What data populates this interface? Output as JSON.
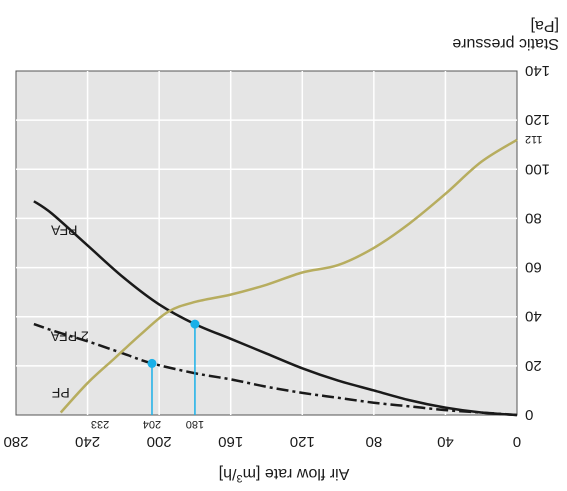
{
  "colors": {
    "plot_background": "#e5e5e5",
    "grid": "#ffffff",
    "PFA": "#1a1a1a",
    "2 PFA": "#1a1a1a",
    "PF": "#b7ad5f",
    "marker": "#1ab0e8"
  },
  "chart_data": {
    "type": "line",
    "orientation_note_visible": false,
    "xlabel": "Air flow rate [m3/h]",
    "xlabel_parts": {
      "main": "Air flow rate [m",
      "sup": "3",
      "end": "/h]"
    },
    "ylabel_line1": "Static pressure",
    "ylabel_line2": "[Pa]",
    "xlim": [
      0,
      280
    ],
    "ylim": [
      0,
      140
    ],
    "x_ticks": [
      "0",
      "40",
      "80",
      "120",
      "160",
      "200",
      "240",
      "280"
    ],
    "y_ticks": [
      "0",
      "20",
      "40",
      "60",
      "80",
      "100",
      "120",
      "140"
    ],
    "grid": true,
    "series": [
      {
        "name": "PFA",
        "key": "PFA",
        "style": "solid",
        "points": [
          [
            0,
            0
          ],
          [
            20,
            1
          ],
          [
            40,
            3
          ],
          [
            60,
            6
          ],
          [
            80,
            10
          ],
          [
            100,
            14
          ],
          [
            120,
            19
          ],
          [
            140,
            25
          ],
          [
            160,
            31
          ],
          [
            180,
            37
          ],
          [
            200,
            45
          ],
          [
            220,
            56
          ],
          [
            240,
            69
          ],
          [
            260,
            82
          ],
          [
            270,
            87
          ]
        ]
      },
      {
        "name": "2 PFA",
        "key": "2 PFA",
        "style": "dashdot",
        "points": [
          [
            0,
            0
          ],
          [
            20,
            1
          ],
          [
            40,
            2
          ],
          [
            60,
            3.5
          ],
          [
            80,
            5
          ],
          [
            100,
            7
          ],
          [
            120,
            9
          ],
          [
            140,
            11.5
          ],
          [
            160,
            14.5
          ],
          [
            180,
            17
          ],
          [
            204,
            21
          ],
          [
            220,
            25
          ],
          [
            240,
            30
          ],
          [
            258,
            34
          ],
          [
            270,
            37
          ]
        ]
      },
      {
        "name": "PF",
        "key": "PF",
        "style": "solid",
        "points": [
          [
            0,
            112
          ],
          [
            20,
            103
          ],
          [
            40,
            90
          ],
          [
            60,
            78
          ],
          [
            80,
            68
          ],
          [
            100,
            61
          ],
          [
            120,
            58
          ],
          [
            140,
            53
          ],
          [
            160,
            49
          ],
          [
            180,
            46
          ],
          [
            195,
            42
          ],
          [
            210,
            33
          ],
          [
            225,
            23
          ],
          [
            240,
            13
          ],
          [
            255,
            1
          ]
        ]
      }
    ],
    "markers": [
      {
        "x": 180,
        "y": 37,
        "label": "180"
      },
      {
        "x": 204,
        "y": 21,
        "label": "204"
      }
    ],
    "annotations": {
      "x_233": "233",
      "y_112": "112"
    }
  }
}
